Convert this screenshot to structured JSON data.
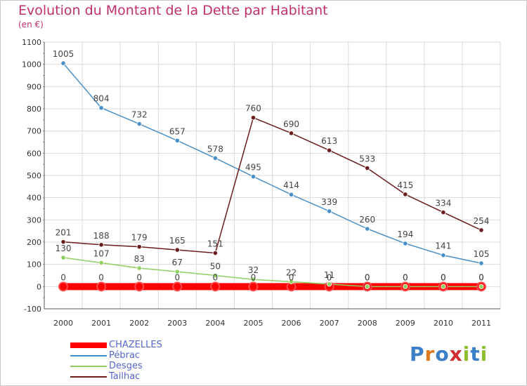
{
  "title": "Evolution du Montant de la Dette par Habitant",
  "subtitle": "(en €)",
  "logo": "Proxiti",
  "colors": {
    "title": "#c0306a",
    "grid": "#d9d9d9",
    "legend_text": "#5566cc"
  },
  "chart_data": {
    "type": "line",
    "title": "Evolution du Montant de la Dette par Habitant",
    "ylabel": "(en €)",
    "xlabel": "",
    "x": [
      "2000",
      "2001",
      "2002",
      "2003",
      "2004",
      "2005",
      "2006",
      "2007",
      "2008",
      "2009",
      "2010",
      "2011"
    ],
    "ylim": [
      -100,
      1100
    ],
    "yticks": [
      -100,
      0,
      100,
      200,
      300,
      400,
      500,
      600,
      700,
      800,
      900,
      1000,
      1100
    ],
    "grid": true,
    "legend_position": "bottom-left",
    "series": [
      {
        "name": "CHAZELLES",
        "color": "#ff0000",
        "values": [
          0,
          0,
          0,
          0,
          0,
          0,
          0,
          0,
          0,
          0,
          0,
          0
        ],
        "labels": [
          "0",
          "0",
          "0",
          "0",
          "0",
          "0",
          "0",
          "0",
          "0",
          "0",
          "0",
          "0"
        ]
      },
      {
        "name": "Pébrac",
        "color": "#4a90c8",
        "values": [
          1005,
          804,
          732,
          657,
          578,
          495,
          414,
          339,
          260,
          194,
          141,
          105
        ],
        "labels": [
          "1005",
          "804",
          "732",
          "657",
          "578",
          "495",
          "414",
          "339",
          "260",
          "194",
          "141",
          "105"
        ]
      },
      {
        "name": "Desges",
        "color": "#8fd060",
        "values": [
          130,
          107,
          83,
          67,
          50,
          32,
          22,
          11,
          0,
          0,
          0,
          0
        ],
        "labels": [
          "130",
          "107",
          "83",
          "67",
          "50",
          "32",
          "22",
          "11",
          "0",
          "0",
          "0",
          "0"
        ]
      },
      {
        "name": "Tailhac",
        "color": "#6b1c1c",
        "values": [
          201,
          188,
          179,
          165,
          151,
          760,
          690,
          613,
          533,
          415,
          334,
          254
        ],
        "labels": [
          "201",
          "188",
          "179",
          "165",
          "151",
          "760",
          "690",
          "613",
          "533",
          "415",
          "334",
          "254"
        ]
      }
    ]
  }
}
